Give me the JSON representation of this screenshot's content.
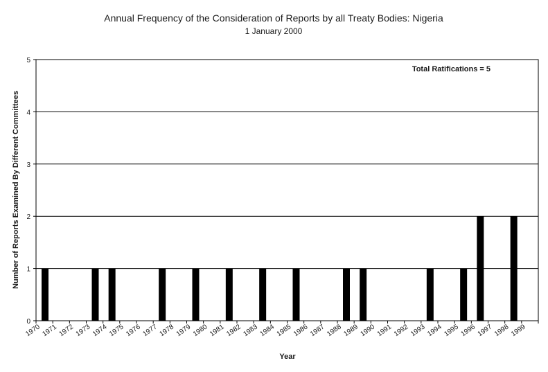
{
  "chart_data": {
    "type": "bar",
    "title": "Annual Frequency of the Consideration of Reports by all Treaty Bodies: Nigeria",
    "subtitle": "1 January 2000",
    "xlabel": "Year",
    "ylabel": "Number of Reports Examined By Different Committees",
    "ylim": [
      0,
      5
    ],
    "yticks": [
      "0",
      "1",
      "2",
      "3",
      "4",
      "5"
    ],
    "grid": true,
    "annotation": "Total Ratifications = 5",
    "bar_color": "#000000",
    "categories": [
      "1970",
      "1971",
      "1972",
      "1973",
      "1974",
      "1975",
      "1976",
      "1977",
      "1978",
      "1979",
      "1980",
      "1981",
      "1982",
      "1983",
      "1984",
      "1985",
      "1986",
      "1987",
      "1988",
      "1989",
      "1990",
      "1991",
      "1992",
      "1993",
      "1994",
      "1995",
      "1996",
      "1997",
      "1998",
      "1999"
    ],
    "values": [
      1,
      0,
      0,
      1,
      1,
      0,
      0,
      1,
      0,
      1,
      0,
      1,
      0,
      1,
      0,
      1,
      0,
      0,
      1,
      1,
      0,
      0,
      0,
      1,
      0,
      1,
      2,
      0,
      2,
      0
    ]
  }
}
